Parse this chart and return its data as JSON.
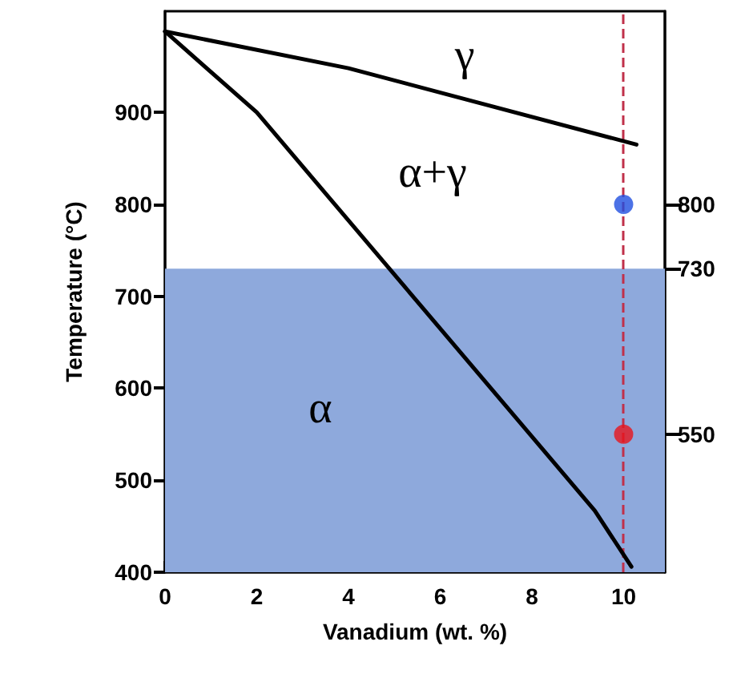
{
  "chart_data": {
    "type": "line",
    "xlabel": "Vanadium (wt. %)",
    "ylabel": "Temperature (°C)",
    "xlim": [
      0,
      10.9
    ],
    "xticks": [
      0,
      2,
      4,
      6,
      8,
      10
    ],
    "ylim": [
      400,
      1010
    ],
    "yticks": [
      400,
      500,
      600,
      700,
      800,
      900
    ],
    "y2lim": [
      400,
      1010
    ],
    "y2ticks": [
      550,
      730,
      800
    ],
    "grid": false,
    "marker": "none",
    "line_style": "solid",
    "series": [
      {
        "color": "#000000",
        "x": [
          0,
          4,
          10.28
        ],
        "values": [
          988,
          948,
          865
        ]
      },
      {
        "color": "#000000",
        "x": [
          0,
          2,
          9.37,
          10.17
        ],
        "values": [
          988,
          900,
          467,
          406
        ]
      },
      {
        "type": "scatter",
        "color": "#1f4fe0",
        "marker": "circle",
        "x": [
          10
        ],
        "values": [
          800
        ]
      },
      {
        "type": "scatter",
        "color": "#e8141c",
        "marker": "circle",
        "x": [
          10
        ],
        "values": [
          550
        ]
      }
    ],
    "bands": [
      {
        "axis": "y",
        "from": 400,
        "to": 730,
        "color": "#8ea9dc"
      }
    ],
    "ref_lines": [
      {
        "axis": "x",
        "value": 10,
        "color": "#c0304a",
        "line_style": "dashed"
      }
    ],
    "annotations": [
      "γ",
      "α+γ",
      "α"
    ]
  }
}
